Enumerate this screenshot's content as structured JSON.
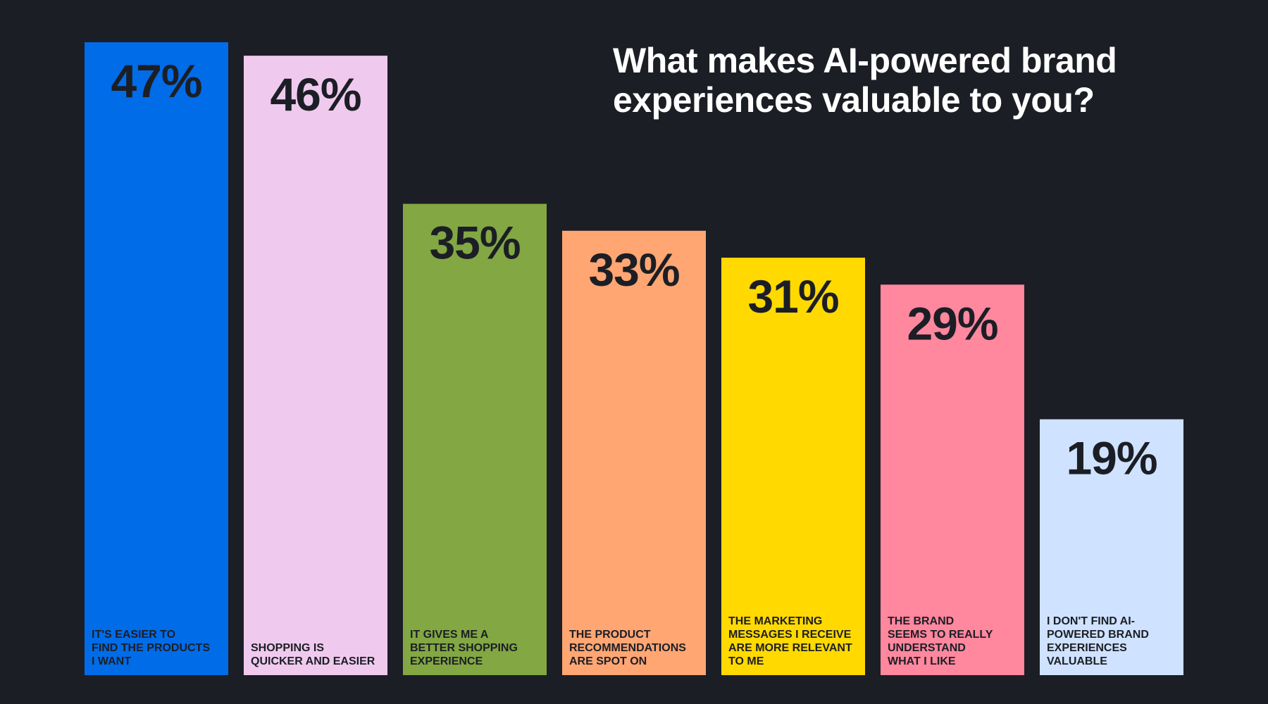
{
  "chart_data": {
    "type": "bar",
    "title_lines": [
      "What makes AI-powered brand",
      "experiences valuable to you?"
    ],
    "ylim": [
      0,
      47
    ],
    "grid": false,
    "bars": [
      {
        "value": 47,
        "value_label": "47%",
        "color": "#006ce8",
        "label_lines": [
          "IT'S EASIER TO",
          "FIND THE PRODUCTS",
          "I WANT"
        ]
      },
      {
        "value": 46,
        "value_label": "46%",
        "color": "#f0caee",
        "label_lines": [
          "SHOPPING IS",
          "QUICKER AND EASIER"
        ]
      },
      {
        "value": 35,
        "value_label": "35%",
        "color": "#82a743",
        "label_lines": [
          "IT GIVES ME A",
          "BETTER SHOPPING",
          "EXPERIENCE"
        ]
      },
      {
        "value": 33,
        "value_label": "33%",
        "color": "#ffa673",
        "label_lines": [
          "THE PRODUCT",
          "RECOMMENDATIONS",
          "ARE SPOT ON"
        ]
      },
      {
        "value": 31,
        "value_label": "31%",
        "color": "#ffd900",
        "label_lines": [
          "THE MARKETING",
          "MESSAGES I RECEIVE",
          "ARE MORE RELEVANT",
          "TO ME"
        ]
      },
      {
        "value": 29,
        "value_label": "29%",
        "color": "#ff879e",
        "label_lines": [
          "THE BRAND",
          "SEEMS TO REALLY",
          "UNDERSTAND",
          "WHAT I LIKE"
        ]
      },
      {
        "value": 19,
        "value_label": "19%",
        "color": "#cfe2ff",
        "label_lines": [
          "I DON'T FIND AI-",
          "POWERED BRAND",
          "EXPERIENCES",
          "VALUABLE"
        ]
      }
    ]
  }
}
